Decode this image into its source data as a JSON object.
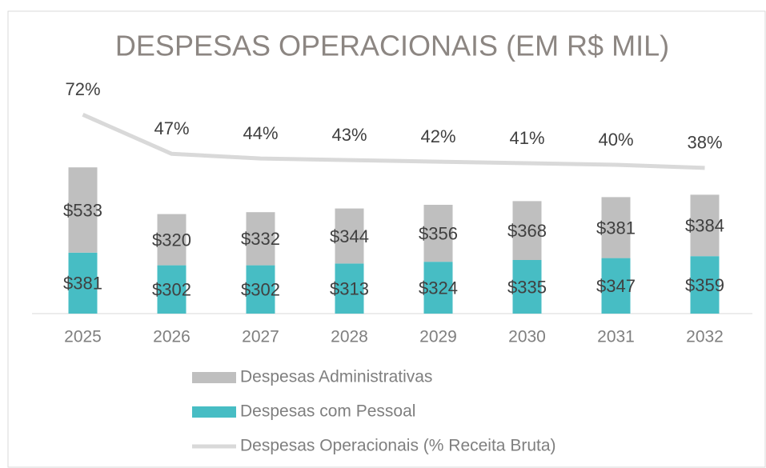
{
  "chart_data": {
    "type": "bar-line",
    "title": "DESPESAS OPERACIONAIS (EM R$ MIL)",
    "categories": [
      "2025",
      "2026",
      "2027",
      "2028",
      "2029",
      "2030",
      "2031",
      "2032"
    ],
    "series": [
      {
        "name": "Despesas Administrativas",
        "type": "bar",
        "color": "#bfbfbf",
        "values": [
          533,
          320,
          332,
          344,
          356,
          368,
          381,
          384
        ],
        "value_labels": [
          "$533",
          "$320",
          "$332",
          "$344",
          "$356",
          "$368",
          "$381",
          "$384"
        ]
      },
      {
        "name": "Despesas com Pessoal",
        "type": "bar",
        "color": "#47bdc4",
        "values": [
          381,
          302,
          302,
          313,
          324,
          335,
          347,
          359
        ],
        "value_labels": [
          "$381",
          "$302",
          "$302",
          "$313",
          "$324",
          "$335",
          "$347",
          "$359"
        ]
      },
      {
        "name": "Despesas Operacionais (% Receita Bruta)",
        "type": "line",
        "axis": "y2",
        "color": "#d9d9d9",
        "values": [
          72,
          47,
          44,
          43,
          42,
          41,
          40,
          38
        ],
        "value_labels": [
          "72%",
          "47%",
          "44%",
          "43%",
          "42%",
          "41%",
          "40%",
          "38%"
        ]
      }
    ],
    "stacked": true,
    "ylim": [
      0,
      1400
    ],
    "y2lim": [
      -55,
      88
    ],
    "legend": "bottom"
  }
}
